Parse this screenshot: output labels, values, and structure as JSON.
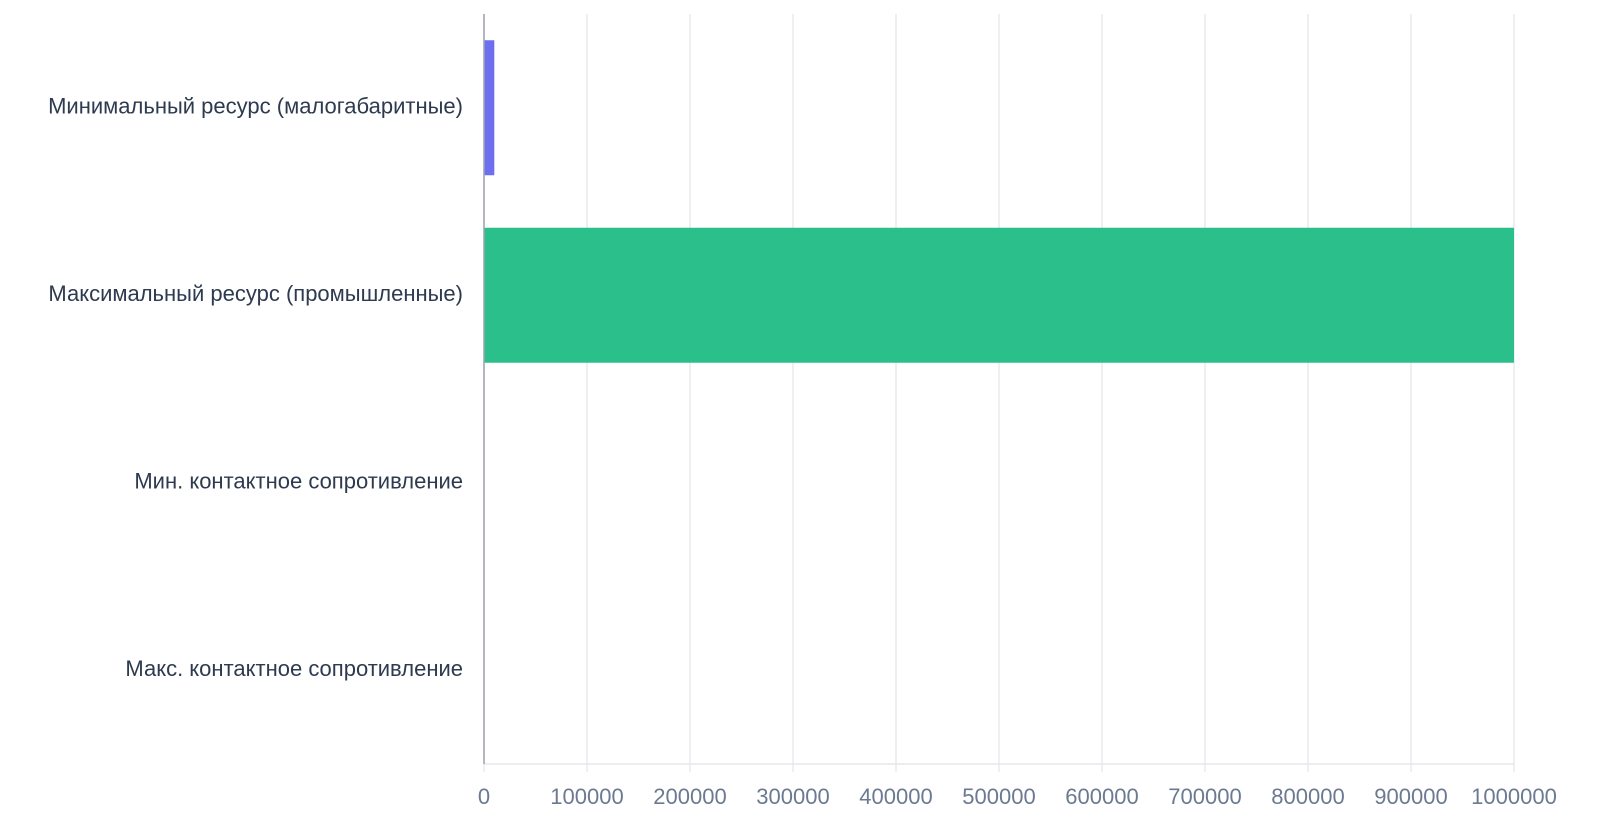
{
  "chart_data": {
    "type": "hbar",
    "categories": [
      "Минимальный ресурс (малогабаритные)",
      "Максимальный ресурс (промышленные)",
      "Мин. контактное сопротивление",
      "Макс. контактное сопротивление"
    ],
    "values": [
      10000,
      1000000,
      0,
      0
    ],
    "colors": [
      "#6e6ef1",
      "#2bbf8c",
      "#6e6ef1",
      "#2bbf8c"
    ],
    "xlim": [
      0,
      1000000
    ],
    "xticks": [
      0,
      100000,
      200000,
      300000,
      400000,
      500000,
      600000,
      700000,
      800000,
      900000,
      1000000
    ],
    "grid": true
  }
}
